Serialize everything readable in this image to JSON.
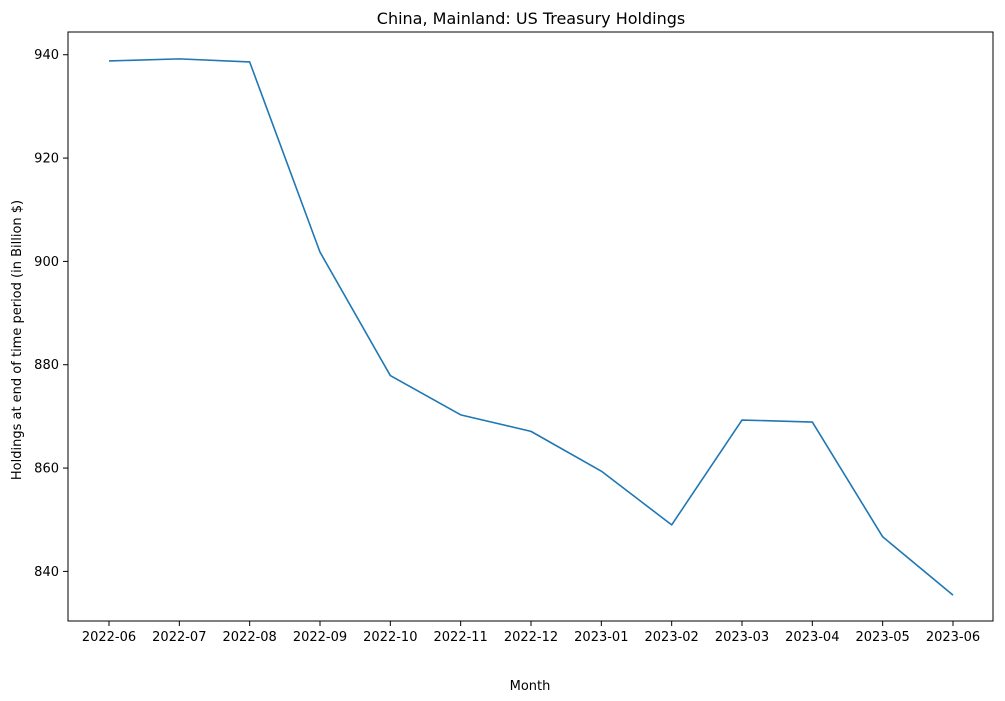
{
  "chart_data": {
    "type": "line",
    "title": "China, Mainland: US Treasury Holdings",
    "xlabel": "Month",
    "ylabel": "Holdings at end of time period (in Billion $)",
    "categories": [
      "2022-06",
      "2022-07",
      "2022-08",
      "2022-09",
      "2022-10",
      "2022-11",
      "2022-12",
      "2023-01",
      "2023-02",
      "2023-03",
      "2023-04",
      "2023-05",
      "2023-06"
    ],
    "series": [
      {
        "values": [
          938.8,
          939.2,
          938.6,
          901.8,
          877.9,
          870.3,
          867.1,
          859.4,
          849.0,
          869.3,
          868.9,
          846.7,
          835.4
        ],
        "color": "#1f77b4"
      }
    ],
    "yticks": [
      840,
      860,
      880,
      900,
      920,
      940
    ],
    "ylim": [
      830.4,
      944.4
    ],
    "grid": false,
    "legend": "none"
  }
}
